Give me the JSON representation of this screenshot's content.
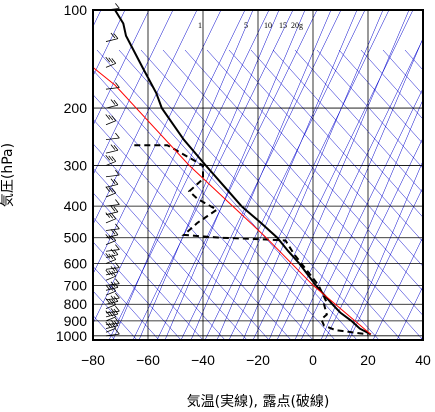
{
  "chart_data": {
    "type": "line",
    "subtype": "skew-T log-p diagram",
    "xlabel": "気温(実線), 露点(破線)",
    "ylabel": "気圧(hPa)",
    "x_ticks": [
      -80,
      -60,
      -40,
      -20,
      0,
      20,
      40
    ],
    "x_tick_labels": [
      "−80",
      "−60",
      "−40",
      "−20",
      "0",
      "20",
      "40"
    ],
    "xlim": [
      -80,
      40
    ],
    "y_ticks": [
      100,
      200,
      300,
      400,
      500,
      600,
      700,
      800,
      900,
      1000
    ],
    "y_tick_labels": [
      "100",
      "200",
      "300",
      "400",
      "500",
      "600",
      "700",
      "800",
      "900",
      "1000"
    ],
    "ylim": [
      1030,
      100
    ],
    "y_scale": "log",
    "mixing_ratio_labels": [
      "1",
      "5",
      "10",
      "15",
      "20g"
    ],
    "series": [
      {
        "style": "solid",
        "color": "#000000",
        "points": [
          [
            100,
            -72
          ],
          [
            110,
            -69
          ],
          [
            120,
            -68
          ],
          [
            150,
            -62
          ],
          [
            180,
            -57
          ],
          [
            200,
            -55
          ],
          [
            250,
            -47
          ],
          [
            300,
            -39
          ],
          [
            350,
            -32
          ],
          [
            400,
            -26
          ],
          [
            450,
            -19
          ],
          [
            500,
            -13
          ],
          [
            550,
            -9
          ],
          [
            600,
            -5
          ],
          [
            700,
            1
          ],
          [
            800,
            7
          ],
          [
            850,
            10
          ],
          [
            900,
            14
          ],
          [
            950,
            17
          ],
          [
            990,
            21
          ]
        ]
      },
      {
        "style": "dashed",
        "color": "#000000",
        "points": [
          [
            260,
            -65
          ],
          [
            260,
            -53
          ],
          [
            300,
            -40
          ],
          [
            330,
            -40
          ],
          [
            360,
            -45
          ],
          [
            380,
            -42
          ],
          [
            410,
            -35
          ],
          [
            450,
            -42
          ],
          [
            490,
            -47
          ],
          [
            500,
            -34
          ],
          [
            505,
            -20
          ],
          [
            510,
            -10
          ],
          [
            560,
            -7
          ],
          [
            700,
            2
          ],
          [
            790,
            5
          ],
          [
            800,
            4
          ],
          [
            860,
            5
          ],
          [
            890,
            3
          ],
          [
            930,
            4
          ],
          [
            960,
            8
          ],
          [
            990,
            20
          ]
        ]
      },
      {
        "style": "solid",
        "color": "#ff0000",
        "points": [
          [
            990,
            21
          ],
          [
            700,
            0
          ],
          [
            500,
            -17
          ],
          [
            300,
            -45
          ],
          [
            170,
            -72
          ],
          [
            150,
            -80
          ]
        ]
      }
    ],
    "wind_barbs": "column of wind barbs along left edge at each level from 100 to 1000 hPa"
  },
  "colors": {
    "temperature": "#000000",
    "dewpoint": "#000000",
    "parcel": "#ff0000",
    "isotherms_dry_adiabats": "#0000cc",
    "grid": "#000000"
  }
}
